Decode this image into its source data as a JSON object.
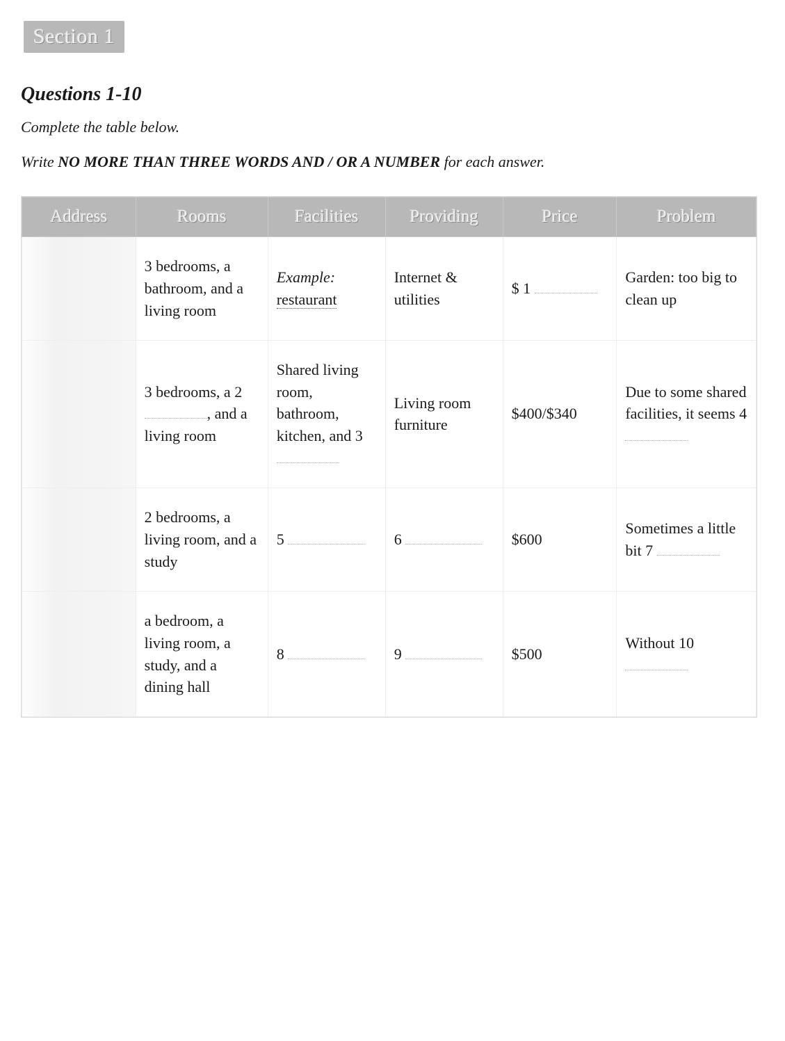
{
  "section_label": "Section 1",
  "questions_heading": "Questions 1-10",
  "instruction_prefix": "Complete the table below.",
  "instruction_line2_pre": "Write ",
  "instruction_line2_emph": "NO MORE THAN THREE WORDS AND / OR A NUMBER",
  "instruction_line2_post": " for each answer.",
  "table": {
    "columns": [
      "Address",
      "Rooms",
      "Facilities",
      "Providing",
      "Price",
      "Problem"
    ],
    "header_bg": "#b8b8b8",
    "header_text_color": "#eeeeee",
    "border_color": "#d9d9d9",
    "rows": [
      {
        "address": "",
        "rooms": "3 bedrooms, a bathroom, and a living room",
        "facilities_example_label": "Example:",
        "facilities_example_answer": "restaurant",
        "providing": "Internet & utilities",
        "price_prefix": "$ ",
        "price_blanknum": "1",
        "problem": "Garden: too big to clean up"
      },
      {
        "address": "",
        "rooms_pre": "3 bedrooms, a ",
        "rooms_blanknum": "2",
        "rooms_post": ", and a living room",
        "facilities_pre": "Shared living room, bathroom, kitchen, and ",
        "facilities_blanknum": "3",
        "providing": "Living room furniture",
        "price": "$400/$340",
        "problem_pre": "Due to some shared facilities, it seems ",
        "problem_blanknum": "4"
      },
      {
        "address": "",
        "rooms": "2 bedrooms, a living room, and a study",
        "facilities_blanknum": "5",
        "providing_blanknum": "6",
        "price": "$600",
        "problem_pre": "Sometimes a little bit ",
        "problem_blanknum": "7"
      },
      {
        "address": "",
        "rooms": "a bedroom, a living room, a study, and a dining hall",
        "facilities_blanknum": "8",
        "providing_blanknum": "9",
        "price": "$500",
        "problem_pre": "Without ",
        "problem_blanknum": "10"
      }
    ]
  }
}
